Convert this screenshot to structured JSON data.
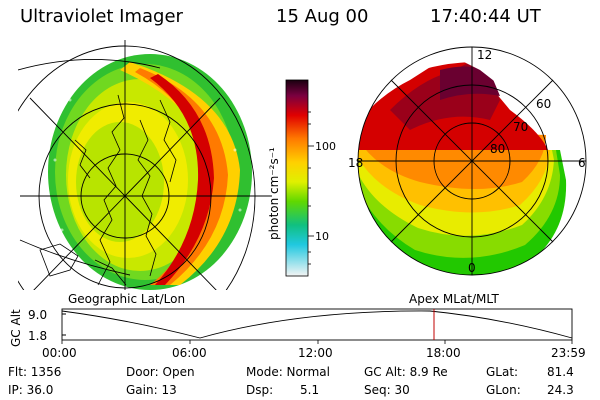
{
  "header": {
    "instrument": "Ultraviolet Imager",
    "date": "15 Aug 00",
    "time": "17:40:44 UT"
  },
  "colorbar": {
    "unit_label": "photon cm⁻²s⁻¹",
    "ticks": [
      "100",
      "10"
    ]
  },
  "polar_plot": {
    "mlt_labels": {
      "top": "12",
      "left": "18",
      "right": "6",
      "bottom": "0"
    },
    "lat_labels": [
      "60",
      "70",
      "80"
    ]
  },
  "panel_captions": {
    "left": "Geographic Lat/Lon",
    "right": "Apex MLat/MLT"
  },
  "altitude_chart": {
    "ylabel": "GC Alt",
    "yticks": [
      "9.0",
      "1.8"
    ],
    "xticks": [
      "00:00",
      "06:00",
      "12:00",
      "18:00",
      "23:59"
    ],
    "current_time_marker": "17:40"
  },
  "status": {
    "flt": "Flt: 1356",
    "ip": "IP: 36.0",
    "door": "Door: Open",
    "gain": "Gain: 13",
    "mode": "Mode: Normal",
    "dsp": "Dsp:",
    "dsp_val": "5.1",
    "gcalt": "GC Alt: 8.9 Re",
    "seq": "Seq: 30",
    "glat": "GLat:",
    "glat_val": "81.4",
    "glon": "GLon:",
    "glon_val": "24.3"
  },
  "colors": {
    "oval_red": "#d40000",
    "oval_orange": "#ff9400",
    "oval_yellow": "#fff000",
    "oval_green": "#22c800",
    "dark_red": "#9a001a"
  }
}
